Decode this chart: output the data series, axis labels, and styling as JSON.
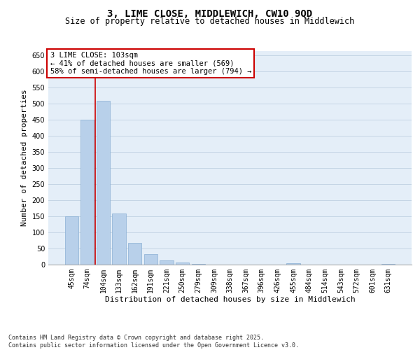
{
  "title_line1": "3, LIME CLOSE, MIDDLEWICH, CW10 9QD",
  "title_line2": "Size of property relative to detached houses in Middlewich",
  "xlabel": "Distribution of detached houses by size in Middlewich",
  "ylabel": "Number of detached properties",
  "categories": [
    "45sqm",
    "74sqm",
    "104sqm",
    "133sqm",
    "162sqm",
    "191sqm",
    "221sqm",
    "250sqm",
    "279sqm",
    "309sqm",
    "338sqm",
    "367sqm",
    "396sqm",
    "426sqm",
    "455sqm",
    "484sqm",
    "514sqm",
    "543sqm",
    "572sqm",
    "601sqm",
    "631sqm"
  ],
  "values": [
    150,
    450,
    510,
    158,
    66,
    31,
    12,
    5,
    1,
    0,
    0,
    0,
    0,
    0,
    3,
    0,
    0,
    0,
    0,
    0,
    2
  ],
  "bar_color": "#b8d0ea",
  "bar_edge_color": "#8ab0d4",
  "annotation_line1": "3 LIME CLOSE: 103sqm",
  "annotation_line2": "← 41% of detached houses are smaller (569)",
  "annotation_line3": "58% of semi-detached houses are larger (794) →",
  "annotation_box_color": "#ffffff",
  "annotation_box_edge_color": "#cc0000",
  "vline_color": "#cc0000",
  "vline_position": 1.5,
  "ylim": [
    0,
    665
  ],
  "yticks": [
    0,
    50,
    100,
    150,
    200,
    250,
    300,
    350,
    400,
    450,
    500,
    550,
    600,
    650
  ],
  "grid_color": "#c5d5e5",
  "background_color": "#e4eef8",
  "footer_line1": "Contains HM Land Registry data © Crown copyright and database right 2025.",
  "footer_line2": "Contains public sector information licensed under the Open Government Licence v3.0.",
  "title_fontsize": 10,
  "subtitle_fontsize": 8.5,
  "axis_label_fontsize": 8,
  "tick_fontsize": 7,
  "annotation_fontsize": 7.5,
  "footer_fontsize": 6
}
